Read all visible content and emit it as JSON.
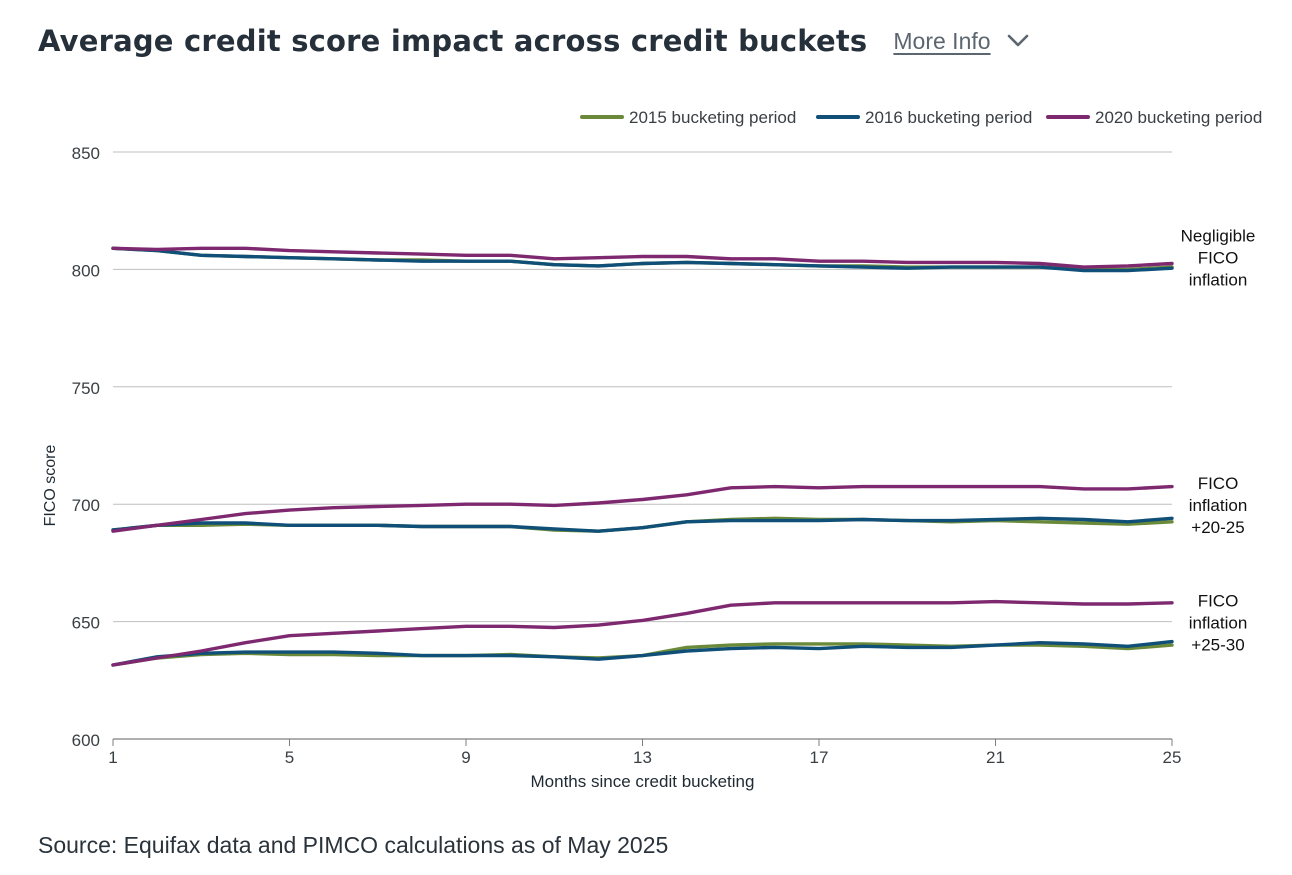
{
  "header": {
    "title": "Average credit score impact across credit buckets",
    "more_info_label": "More Info"
  },
  "source": "Source: Equifax data and PIMCO calculations as of May 2025",
  "colors": {
    "series_2015": "#6a8a3a",
    "series_2016": "#0f4f78",
    "series_2020": "#7e2870",
    "grid": "#bfbfbf",
    "axis": "#7f7f7f",
    "text": "#1f2a33"
  },
  "icons": {
    "more_info": "chevron-down-icon"
  },
  "chart_data": {
    "type": "line",
    "title": "Average credit score impact across credit buckets",
    "xlabel": "Months since credit bucketing",
    "ylabel": "FICO score",
    "ylim": [
      600,
      850
    ],
    "xlim": [
      1,
      25
    ],
    "yticks": [
      600,
      650,
      700,
      750,
      800,
      850
    ],
    "xticks": [
      1,
      5,
      9,
      13,
      17,
      21,
      25
    ],
    "grid": true,
    "legend_position": "top-right",
    "legend": [
      "2015 bucketing period",
      "2016 bucketing period",
      "2020 bucketing period"
    ],
    "series": [
      {
        "name": "2015 bucketing period",
        "color": "#6a8a3a",
        "groups": [
          {
            "group": "high",
            "values": [
              809,
              808,
              806,
              805.5,
              805,
              804.5,
              804,
              804,
              803.5,
              803.5,
              802,
              801.5,
              802.5,
              803,
              802.5,
              802,
              801.5,
              801.5,
              801,
              801,
              801,
              801,
              800,
              800,
              801
            ]
          },
          {
            "group": "mid",
            "values": [
              689,
              691,
              691,
              691.5,
              691,
              691,
              691,
              690.5,
              690.5,
              690.5,
              689,
              688.5,
              690,
              692.5,
              693.5,
              694,
              693.5,
              693.5,
              693,
              692.5,
              693,
              692.5,
              692,
              691.5,
              692.5
            ]
          },
          {
            "group": "low",
            "values": [
              631.5,
              634.5,
              636,
              636.5,
              636,
              636,
              635.5,
              635.5,
              635.5,
              636,
              635,
              634.5,
              635.5,
              639,
              640,
              640.5,
              640.5,
              640.5,
              640,
              639.5,
              640,
              640,
              639.5,
              638.5,
              640
            ]
          }
        ]
      },
      {
        "name": "2016 bucketing period",
        "color": "#0f4f78",
        "groups": [
          {
            "group": "high",
            "values": [
              809,
              808,
              806,
              805.5,
              805,
              804.5,
              804,
              803.5,
              803.5,
              803.5,
              802,
              801.5,
              802.5,
              803,
              802.5,
              802,
              801.5,
              801,
              800.5,
              801,
              801,
              801,
              799.5,
              799.5,
              800.5
            ]
          },
          {
            "group": "mid",
            "values": [
              689,
              691,
              692,
              692,
              691,
              691,
              691,
              690.5,
              690.5,
              690.5,
              689.5,
              688.5,
              690,
              692.5,
              693,
              693,
              693,
              693.5,
              693,
              693,
              693.5,
              694,
              693.5,
              692.5,
              694
            ]
          },
          {
            "group": "low",
            "values": [
              631.5,
              635,
              636.5,
              637,
              637,
              637,
              636.5,
              635.5,
              635.5,
              635.5,
              635,
              634,
              635.5,
              637.5,
              638.5,
              639,
              638.5,
              639.5,
              639,
              639,
              640,
              641,
              640.5,
              639.5,
              641.5
            ]
          }
        ]
      },
      {
        "name": "2020 bucketing period",
        "color": "#7e2870",
        "groups": [
          {
            "group": "high",
            "values": [
              809,
              808.5,
              809,
              809,
              808,
              807.5,
              807,
              806.5,
              806,
              806,
              804.5,
              805,
              805.5,
              805.5,
              804.5,
              804.5,
              803.5,
              803.5,
              803,
              803,
              803,
              802.5,
              801,
              801.5,
              802.5
            ]
          },
          {
            "group": "mid",
            "values": [
              688.5,
              691,
              693.5,
              696,
              697.5,
              698.5,
              699,
              699.5,
              700,
              700,
              699.5,
              700.5,
              702,
              704,
              707,
              707.5,
              707,
              707.5,
              707.5,
              707.5,
              707.5,
              707.5,
              706.5,
              706.5,
              707.5
            ]
          },
          {
            "group": "low",
            "values": [
              631.5,
              634.5,
              637.5,
              641,
              644,
              645,
              646,
              647,
              648,
              648,
              647.5,
              648.5,
              650.5,
              653.5,
              657,
              658,
              658,
              658,
              658,
              658,
              658.5,
              658,
              657.5,
              657.5,
              658
            ]
          }
        ]
      }
    ],
    "annotations": [
      {
        "lines": [
          "Negligible",
          "FICO",
          "inflation"
        ],
        "anchor_y": 803
      },
      {
        "lines": [
          "FICO",
          "inflation",
          "+20-25"
        ],
        "anchor_y": 700
      },
      {
        "lines": [
          "FICO",
          "inflation",
          "+25-30"
        ],
        "anchor_y": 650
      }
    ]
  }
}
